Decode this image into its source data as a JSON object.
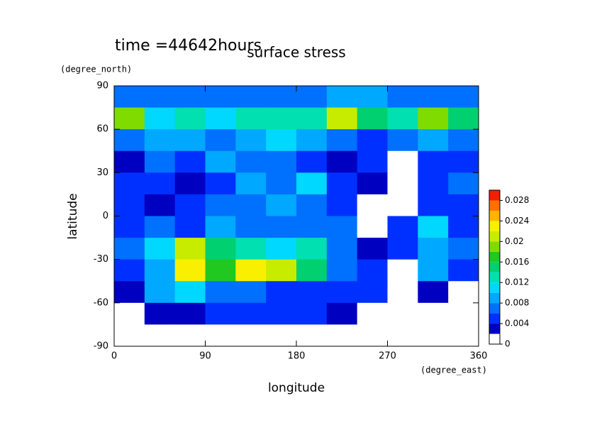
{
  "chart_data": {
    "type": "contour",
    "title": "surface stress",
    "subtitle": "time =44642hours",
    "x_label": "longitude",
    "x_unit": "(degree_east)",
    "y_label": "latitude",
    "y_unit": "(degree_north)",
    "xlim": [
      0,
      360
    ],
    "xticks": [
      0,
      90,
      180,
      270,
      360
    ],
    "ylim": [
      -90,
      90
    ],
    "yticks": [
      -90,
      -60,
      -30,
      0,
      30,
      60,
      90
    ],
    "x": [
      15,
      45,
      75,
      105,
      135,
      165,
      195,
      225,
      255,
      285,
      315,
      345
    ],
    "y": [
      82.5,
      67.5,
      52.5,
      37.5,
      22.5,
      7.5,
      -7.5,
      -22.5,
      -37.5,
      -52.5,
      -67.5,
      -82.5
    ],
    "z": [
      [
        0.006,
        0.006,
        0.006,
        0.006,
        0.006,
        0.006,
        0.006,
        0.008,
        0.008,
        0.006,
        0.006,
        0.006
      ],
      [
        0.018,
        0.01,
        0.012,
        0.01,
        0.012,
        0.012,
        0.012,
        0.02,
        0.014,
        0.012,
        0.018,
        0.014
      ],
      [
        0.006,
        0.008,
        0.008,
        0.006,
        0.008,
        0.01,
        0.008,
        0.006,
        0.004,
        0.006,
        0.008,
        0.006
      ],
      [
        0.002,
        0.006,
        0.004,
        0.008,
        0.006,
        0.006,
        0.004,
        0.002,
        0.004,
        0,
        0.004,
        0.004
      ],
      [
        0.004,
        0.004,
        0.002,
        0.004,
        0.008,
        0.006,
        0.01,
        0.004,
        0.002,
        0,
        0.004,
        0.006
      ],
      [
        0.004,
        0.002,
        0.004,
        0.006,
        0.006,
        0.008,
        0.006,
        0.004,
        0,
        0,
        0.004,
        0.004
      ],
      [
        0.004,
        0.006,
        0.004,
        0.008,
        0.006,
        0.006,
        0.006,
        0.006,
        0,
        0.004,
        0.01,
        0.004
      ],
      [
        0.006,
        0.01,
        0.02,
        0.014,
        0.012,
        0.01,
        0.012,
        0.006,
        0.002,
        0.004,
        0.008,
        0.006
      ],
      [
        0.004,
        0.008,
        0.022,
        0.016,
        0.022,
        0.02,
        0.014,
        0.006,
        0.004,
        0,
        0.008,
        0.004
      ],
      [
        0.002,
        0.008,
        0.01,
        0.006,
        0.006,
        0.004,
        0.004,
        0.004,
        0.004,
        0,
        0.002,
        0
      ],
      [
        0,
        0.002,
        0.002,
        0.004,
        0.004,
        0.004,
        0.004,
        0.002,
        0,
        0,
        0,
        0
      ],
      [
        0,
        0,
        0,
        0,
        0,
        0,
        0,
        0,
        0,
        0,
        0,
        0
      ]
    ],
    "levels": [
      0,
      0.002,
      0.004,
      0.006,
      0.008,
      0.01,
      0.012,
      0.014,
      0.016,
      0.018,
      0.02,
      0.022,
      0.024,
      0.026,
      0.028,
      0.03
    ],
    "colors": [
      "#ffffff",
      "#0000c0",
      "#0030ff",
      "#0070ff",
      "#00a8ff",
      "#00d8ff",
      "#00e0b0",
      "#00d070",
      "#20c820",
      "#80dc00",
      "#c8ec00",
      "#f8f000",
      "#ffb400",
      "#ff7000",
      "#f02000"
    ],
    "colorbar_ticks": [
      0,
      0.004,
      0.008,
      0.012,
      0.016,
      0.02,
      0.024,
      0.028
    ]
  }
}
